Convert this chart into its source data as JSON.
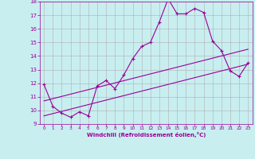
{
  "xlabel": "Windchill (Refroidissement éolien,°C)",
  "bg_color": "#c8eef0",
  "line_color": "#990099",
  "grid_color": "#b0b0b0",
  "xlim": [
    -0.5,
    23.5
  ],
  "ylim": [
    9,
    18
  ],
  "yticks": [
    9,
    10,
    11,
    12,
    13,
    14,
    15,
    16,
    17,
    18
  ],
  "xticks": [
    0,
    1,
    2,
    3,
    4,
    5,
    6,
    7,
    8,
    9,
    10,
    11,
    12,
    13,
    14,
    15,
    16,
    17,
    18,
    19,
    20,
    21,
    22,
    23
  ],
  "main_x": [
    0,
    1,
    2,
    3,
    4,
    5,
    6,
    7,
    8,
    9,
    10,
    11,
    12,
    13,
    14,
    15,
    16,
    17,
    18,
    19,
    20,
    21,
    22,
    23
  ],
  "main_y": [
    11.9,
    10.3,
    9.8,
    9.5,
    9.9,
    9.6,
    11.8,
    12.2,
    11.6,
    12.6,
    13.8,
    14.7,
    15.0,
    16.5,
    18.2,
    17.1,
    17.1,
    17.5,
    17.2,
    15.1,
    14.4,
    12.9,
    12.5,
    13.5
  ],
  "line1_x": [
    0,
    23
  ],
  "line1_y": [
    10.7,
    14.5
  ],
  "line2_x": [
    0,
    23
  ],
  "line2_y": [
    9.6,
    13.4
  ]
}
